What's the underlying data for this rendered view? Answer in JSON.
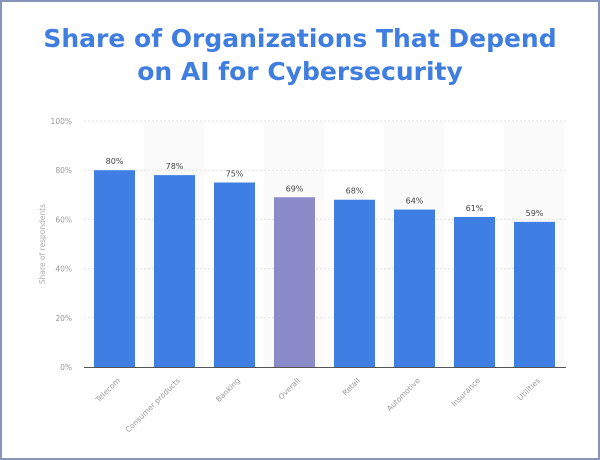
{
  "chart_data": {
    "type": "bar",
    "title": "Share of Organizations That Depend on AI for Cybersecurity",
    "title_lines": [
      "Share of Organizations That Depend",
      "on AI for Cybersecurity"
    ],
    "ylabel": "Share of respondents",
    "xlabel": "",
    "ylim": [
      0,
      100
    ],
    "yticks": [
      "0%",
      "20%",
      "40%",
      "60%",
      "80%",
      "100%"
    ],
    "grid": true,
    "categories": [
      "Telecom",
      "Consumer products",
      "Banking",
      "Overall",
      "Retail",
      "Automotive",
      "Insurance",
      "Utilities"
    ],
    "values": [
      80,
      78,
      75,
      69,
      68,
      64,
      61,
      59
    ],
    "data_labels": [
      "80%",
      "78%",
      "75%",
      "69%",
      "68%",
      "64%",
      "61%",
      "59%"
    ],
    "colors": {
      "bar": "#3f7fe3",
      "highlight": "#8b8ac8",
      "title": "#3f7de0"
    },
    "highlight_category": "Overall"
  }
}
